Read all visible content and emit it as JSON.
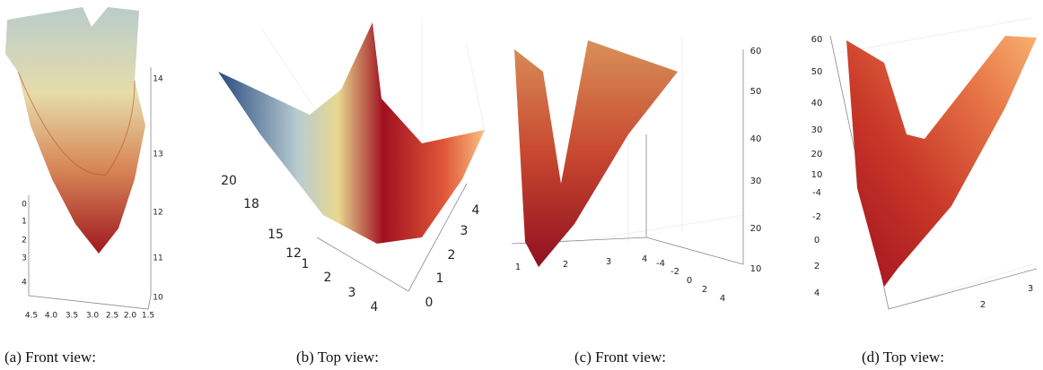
{
  "panels": [
    {
      "caption": "(a) Front view:",
      "ticks": [
        "0",
        "1",
        "2",
        "3",
        "4",
        "4.5",
        "4.0",
        "3.5",
        "3.0",
        "2.5",
        "2.0",
        "1.5",
        "14",
        "13",
        "12",
        "11",
        "10"
      ]
    },
    {
      "caption": "(b) Top view:",
      "ticks": [
        "20",
        "18",
        "15",
        "12",
        "1",
        "2",
        "3",
        "4",
        "4",
        "3",
        "2",
        "1",
        "0"
      ]
    },
    {
      "caption": "(c) Front view:",
      "ticks": [
        "60",
        "50",
        "40",
        "30",
        "20",
        "10",
        "1",
        "2",
        "3",
        "4",
        "-4",
        "-2",
        "0",
        "2",
        "4"
      ]
    },
    {
      "caption": "(d) Top view:",
      "ticks": [
        "60",
        "50",
        "40",
        "30",
        "20",
        "10",
        "-4",
        "-2",
        "0",
        "2",
        "4",
        "2",
        "3"
      ]
    }
  ]
}
